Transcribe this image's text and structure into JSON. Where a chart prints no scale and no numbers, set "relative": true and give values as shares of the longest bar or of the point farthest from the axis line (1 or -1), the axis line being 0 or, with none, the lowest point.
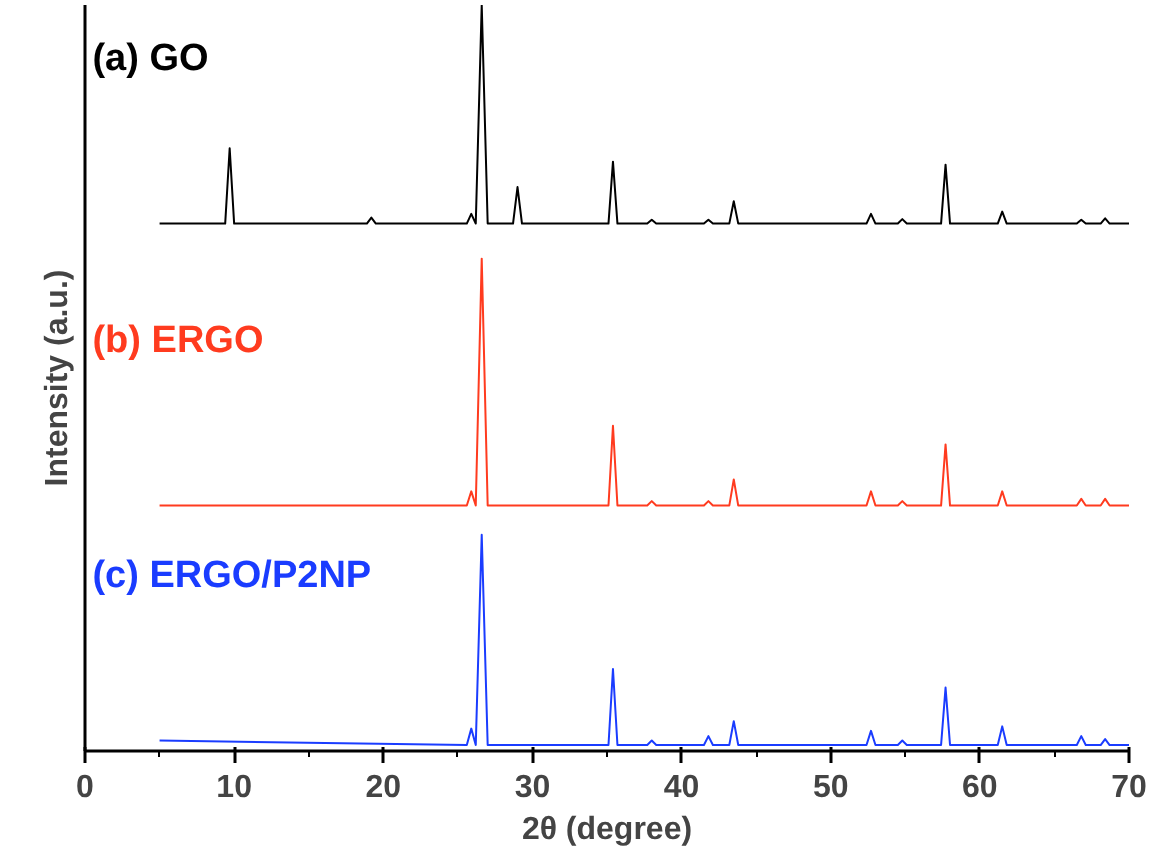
{
  "chart_data": {
    "type": "line",
    "relative": true,
    "xlabel": "2θ (degree)",
    "ylabel": "Intensity (a.u.)",
    "xlim": [
      0,
      70
    ],
    "xticks": [
      0,
      10,
      20,
      30,
      40,
      50,
      60,
      70
    ],
    "tick_labels": "x",
    "grid": false,
    "legend": false,
    "series": [
      {
        "name": "(a) GO",
        "color": "#000000",
        "x": [
          5,
          9.4,
          9.7,
          10.0,
          18.9,
          19.2,
          19.5,
          25.6,
          25.9,
          26.2,
          26.6,
          27.0,
          28.7,
          29.0,
          29.3,
          35.1,
          35.4,
          35.7,
          37.7,
          38.0,
          38.3,
          41.5,
          41.8,
          42.1,
          43.2,
          43.5,
          43.8,
          52.4,
          52.7,
          53.0,
          54.5,
          54.8,
          55.1,
          57.4,
          57.7,
          58.0,
          61.2,
          61.5,
          61.8,
          66.5,
          66.8,
          67.1,
          68.1,
          68.4,
          68.7,
          70
        ],
        "values": [
          0.707,
          0.707,
          0.808,
          0.707,
          0.707,
          0.715,
          0.707,
          0.707,
          0.72,
          0.707,
          1.0,
          0.707,
          0.707,
          0.756,
          0.707,
          0.707,
          0.79,
          0.707,
          0.707,
          0.712,
          0.707,
          0.707,
          0.712,
          0.707,
          0.707,
          0.737,
          0.707,
          0.707,
          0.72,
          0.707,
          0.707,
          0.713,
          0.707,
          0.707,
          0.786,
          0.707,
          0.707,
          0.723,
          0.707,
          0.707,
          0.712,
          0.707,
          0.707,
          0.714,
          0.707,
          0.707
        ]
      },
      {
        "name": "(b) ERGO",
        "color": "#ff3b1f",
        "x": [
          5,
          25.6,
          25.9,
          26.2,
          26.6,
          27.0,
          35.1,
          35.4,
          35.7,
          37.7,
          38.0,
          38.3,
          41.5,
          41.8,
          42.1,
          43.2,
          43.5,
          43.8,
          52.4,
          52.7,
          53.0,
          54.5,
          54.8,
          55.1,
          57.4,
          57.7,
          58.0,
          61.2,
          61.5,
          61.8,
          66.5,
          66.8,
          67.1,
          68.1,
          68.4,
          68.7,
          70
        ],
        "values": [
          0.329,
          0.329,
          0.348,
          0.329,
          0.66,
          0.329,
          0.329,
          0.436,
          0.329,
          0.329,
          0.335,
          0.329,
          0.329,
          0.335,
          0.329,
          0.329,
          0.364,
          0.329,
          0.329,
          0.348,
          0.329,
          0.329,
          0.335,
          0.329,
          0.329,
          0.411,
          0.329,
          0.329,
          0.348,
          0.329,
          0.329,
          0.338,
          0.329,
          0.329,
          0.338,
          0.329,
          0.329
        ]
      },
      {
        "name": "(c) ERGO/P2NP",
        "color": "#1a3cff",
        "x": [
          5,
          25.6,
          25.9,
          26.2,
          26.6,
          27.0,
          35.1,
          35.4,
          35.7,
          37.7,
          38.0,
          38.3,
          41.5,
          41.8,
          42.1,
          43.2,
          43.5,
          43.8,
          52.4,
          52.7,
          53.0,
          54.5,
          54.8,
          55.1,
          57.4,
          57.7,
          58.0,
          61.2,
          61.5,
          61.8,
          66.5,
          66.8,
          67.1,
          68.1,
          68.4,
          68.7,
          70
        ],
        "values": [
          0.014,
          0.008,
          0.03,
          0.008,
          0.29,
          0.008,
          0.008,
          0.11,
          0.008,
          0.008,
          0.014,
          0.008,
          0.008,
          0.02,
          0.008,
          0.008,
          0.04,
          0.008,
          0.008,
          0.027,
          0.008,
          0.008,
          0.014,
          0.008,
          0.008,
          0.085,
          0.008,
          0.008,
          0.033,
          0.008,
          0.008,
          0.02,
          0.008,
          0.008,
          0.016,
          0.008,
          0.008
        ]
      }
    ]
  }
}
